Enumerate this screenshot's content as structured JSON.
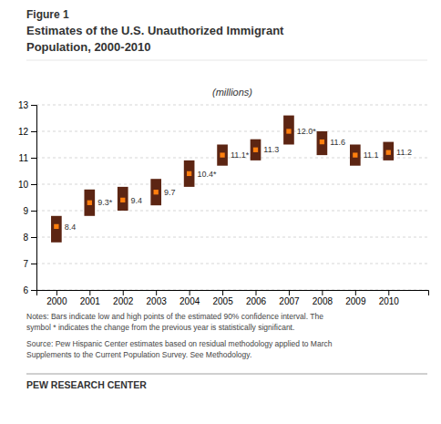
{
  "chart_data": {
    "type": "bar",
    "title": [
      "Figure 1",
      "Estimates of the U.S. Unauthorized Immigrant",
      "Population, 2000-2010"
    ],
    "subtitle": "(millions)",
    "x": [
      2000,
      2001,
      2002,
      2003,
      2004,
      2005,
      2006,
      2007,
      2008,
      2009,
      2010
    ],
    "values": [
      8.4,
      9.3,
      9.4,
      9.7,
      10.4,
      11.1,
      11.3,
      12.0,
      11.6,
      11.1,
      11.2
    ],
    "value_labels": [
      "8.4",
      "9.3*",
      "9.4",
      "9.7",
      "10.4*",
      "11.1*",
      "11.3",
      "12.0*",
      "11.6",
      "11.1",
      "11.2"
    ],
    "low": [
      7.8,
      8.8,
      9.0,
      9.2,
      9.9,
      10.7,
      10.9,
      11.5,
      11.1,
      10.7,
      10.9
    ],
    "high": [
      8.8,
      9.8,
      9.9,
      10.2,
      10.9,
      11.5,
      11.7,
      12.6,
      12.0,
      11.5,
      11.6
    ],
    "data_labels": true,
    "color": "#5c2513",
    "marker": "square",
    "xlim": [
      1999.4,
      2011.2
    ],
    "xticks": [
      2000,
      2001,
      2002,
      2003,
      2004,
      2005,
      2006,
      2007,
      2008,
      2009,
      2010
    ],
    "ylim": [
      6,
      13
    ],
    "yticks": [
      6,
      7,
      8,
      9,
      10,
      11,
      12,
      13
    ],
    "grid": true,
    "notes": [
      "Notes: Bars indicate low and high points of the estimated 90% confidence interval. The",
      "symbol * indicates the change from the previous year is statistically significant."
    ],
    "source": [
      "Source: Pew Hispanic Center estimates based on residual methodology applied to March",
      "Supplements to the Current Population Survey. See Methodology."
    ],
    "footer": "PEW RESEARCH CENTER"
  }
}
